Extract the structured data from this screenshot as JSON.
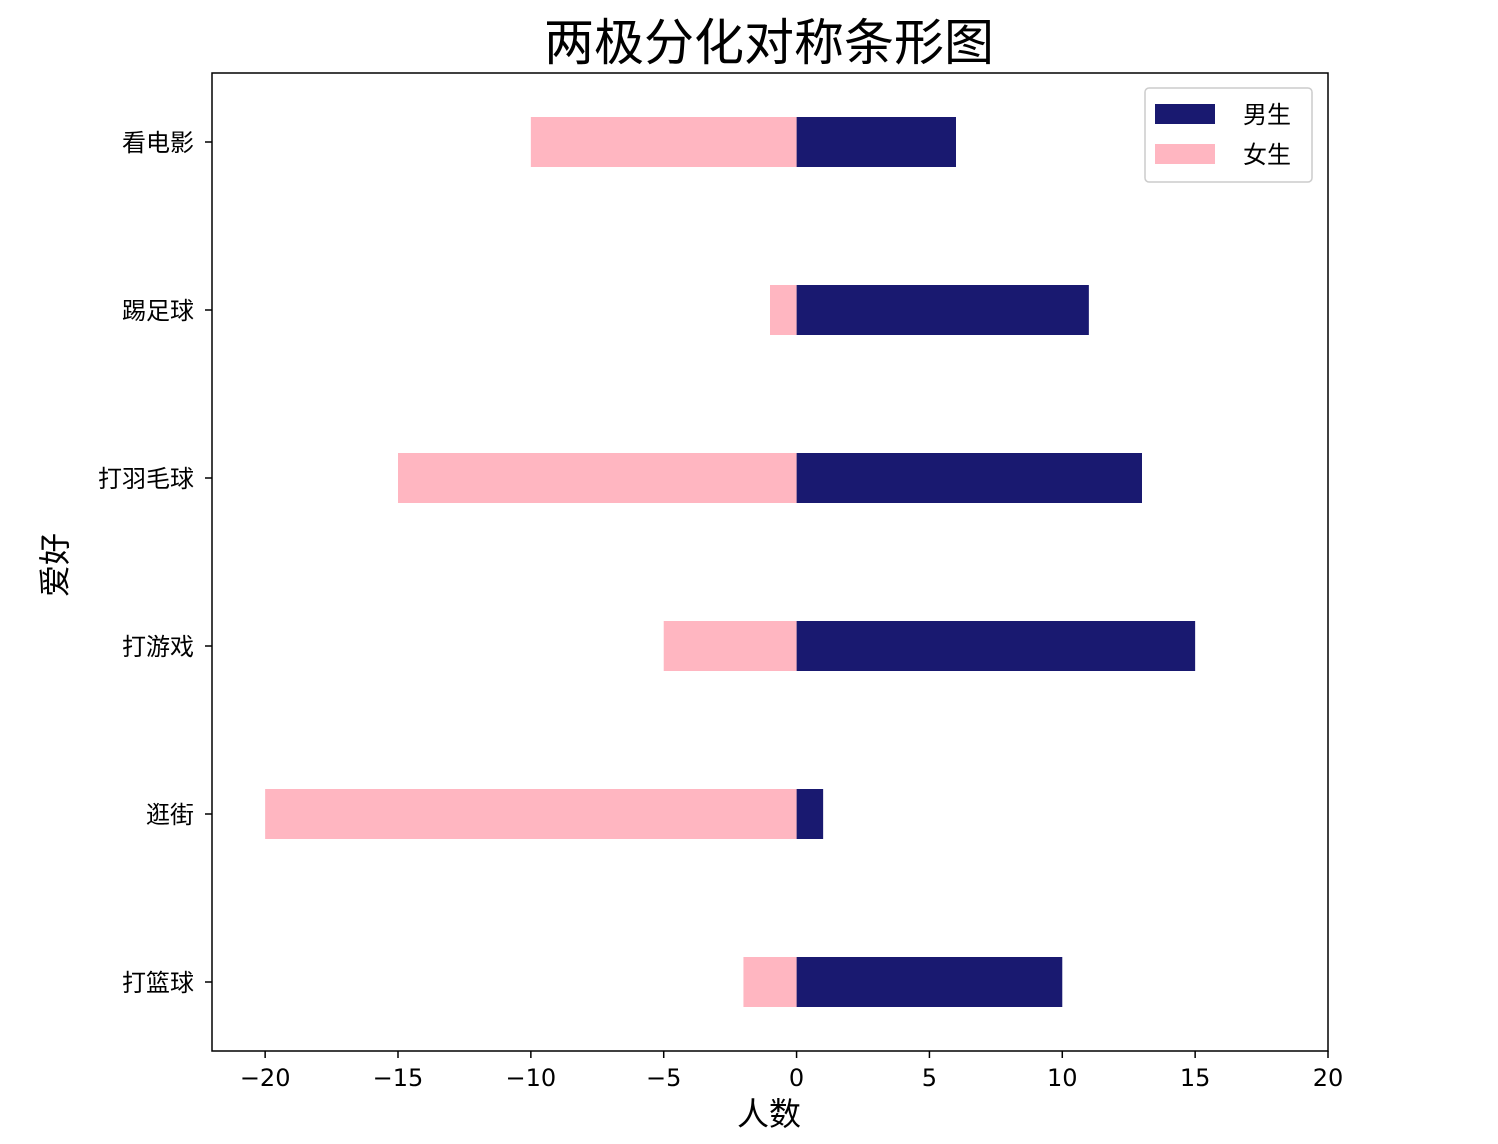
{
  "chart_data": {
    "type": "bar",
    "orientation": "horizontal",
    "title": "两极分化对称条形图",
    "xlabel": "人数",
    "ylabel": "爱好",
    "categories": [
      "看电影",
      "踢足球",
      "打羽毛球",
      "打游戏",
      "逛街",
      "打篮球"
    ],
    "series": [
      {
        "name": "男生",
        "values": [
          6,
          11,
          13,
          15,
          1,
          10
        ],
        "color": "#191970"
      },
      {
        "name": "女生",
        "values": [
          -10,
          -1,
          -15,
          -5,
          -20,
          -2
        ],
        "color": "#ffb6c1"
      }
    ],
    "xlim": [
      -22,
      20
    ],
    "xticks": [
      -20,
      -15,
      -10,
      -5,
      0,
      5,
      10,
      15,
      20
    ],
    "xtick_labels": [
      "−20",
      "−15",
      "−10",
      "−5",
      "0",
      "5",
      "10",
      "15",
      "20"
    ],
    "grid": false,
    "legend_position": "top-right"
  }
}
